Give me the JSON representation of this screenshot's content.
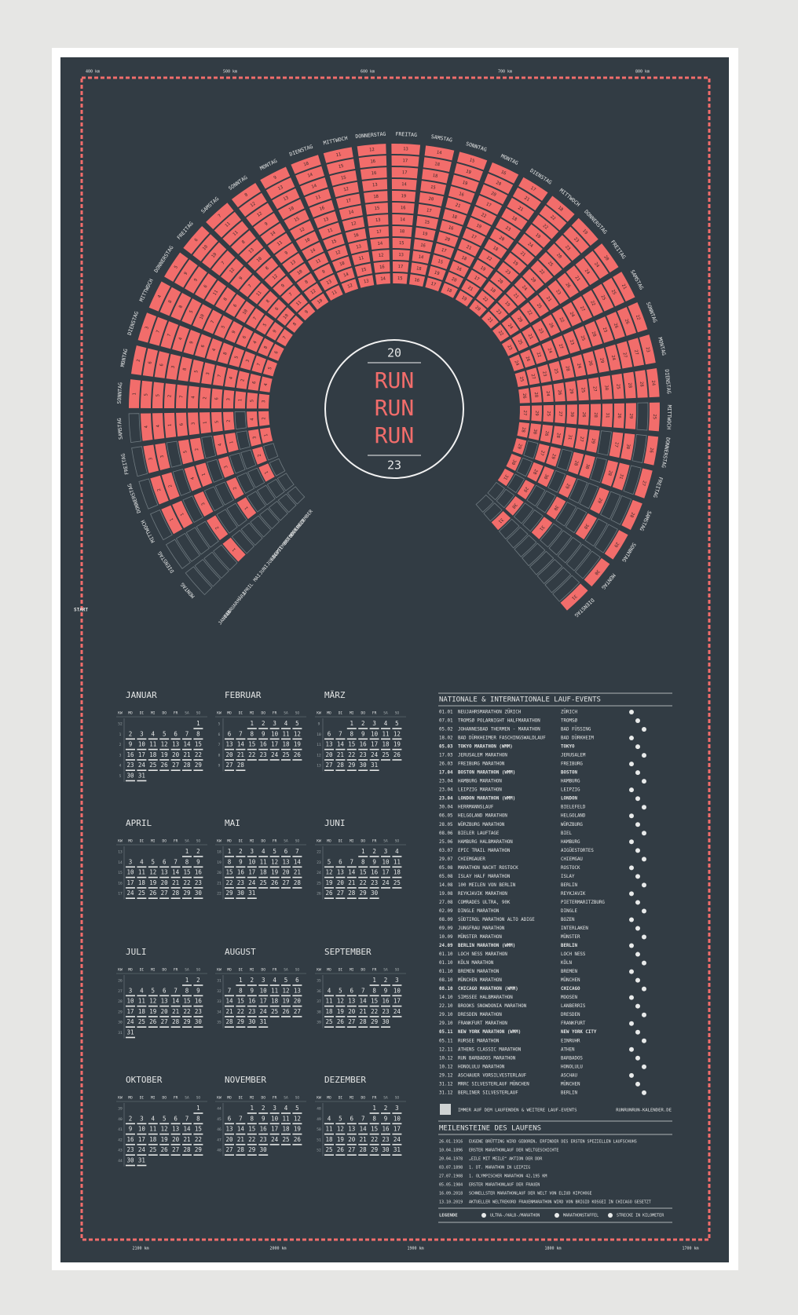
{
  "center": {
    "top": "20",
    "lines": [
      "RUN",
      "RUN",
      "RUN"
    ],
    "bottom": "23"
  },
  "start_label": "START",
  "km_top": [
    "400 km",
    "500 km",
    "600 km",
    "700 km",
    "800 km"
  ],
  "km_bottom": [
    "2100 km",
    "2000 km",
    "1900 km",
    "1800 km",
    "1700 km"
  ],
  "spiral": {
    "weekdays": [
      "MONTAG",
      "DIENSTAG",
      "MITTWOCH",
      "DONNERSTAG",
      "FREITAG",
      "SAMSTAG",
      "SONNTAG"
    ]
  },
  "calendar": {
    "kw_label": "KW",
    "weekday_headers": [
      "MO",
      "DI",
      "MI",
      "DO",
      "FR",
      "SA",
      "SO"
    ],
    "months": [
      {
        "name": "JANUAR",
        "weeks": [
          52,
          1,
          2,
          3,
          4,
          5
        ],
        "days": [
          1,
          2,
          3,
          4,
          5,
          6,
          7,
          8,
          9,
          10,
          11,
          12,
          13,
          14,
          15,
          16,
          17,
          18,
          19,
          20,
          21,
          22,
          23,
          24,
          25,
          26,
          27,
          28,
          29,
          30,
          31
        ]
      },
      {
        "name": "FEBRUAR",
        "weeks": [
          5,
          6,
          7,
          8,
          9
        ],
        "days": [
          1,
          2,
          3,
          4,
          5,
          6,
          7,
          8,
          9,
          10,
          11,
          12,
          13,
          14,
          15,
          16,
          17,
          18,
          19,
          20,
          21,
          22,
          23,
          24,
          25,
          26,
          27,
          28
        ]
      },
      {
        "name": "MÄRZ",
        "weeks": [
          9,
          10,
          11,
          12,
          13
        ],
        "days": [
          1,
          2,
          3,
          4,
          5,
          6,
          7,
          8,
          9,
          10,
          11,
          12,
          13,
          14,
          15,
          16,
          17,
          18,
          19,
          20,
          21,
          22,
          23,
          24,
          25,
          26,
          27,
          28,
          29,
          30,
          31
        ]
      },
      {
        "name": "APRIL",
        "weeks": [
          13,
          14,
          15,
          16,
          17
        ],
        "days": [
          1,
          2,
          3,
          4,
          5,
          6,
          7,
          8,
          9,
          10,
          11,
          12,
          13,
          14,
          15,
          16,
          17,
          18,
          19,
          20,
          21,
          22,
          23,
          24,
          25,
          26,
          27,
          28,
          29,
          30
        ]
      },
      {
        "name": "MAI",
        "weeks": [
          18,
          19,
          20,
          21,
          22
        ],
        "days": [
          1,
          2,
          3,
          4,
          5,
          6,
          7,
          8,
          9,
          10,
          11,
          12,
          13,
          14,
          15,
          16,
          17,
          18,
          19,
          20,
          21,
          22,
          23,
          24,
          25,
          26,
          27,
          28,
          29,
          30,
          31
        ]
      },
      {
        "name": "JUNI",
        "weeks": [
          22,
          23,
          24,
          25,
          26
        ],
        "days": [
          1,
          2,
          3,
          4,
          5,
          6,
          7,
          8,
          9,
          10,
          11,
          12,
          13,
          14,
          15,
          16,
          17,
          18,
          19,
          20,
          21,
          22,
          23,
          24,
          25,
          26,
          27,
          28,
          29,
          30
        ]
      },
      {
        "name": "JULI",
        "weeks": [
          26,
          27,
          28,
          29,
          30,
          31
        ],
        "days": [
          1,
          2,
          3,
          4,
          5,
          6,
          7,
          8,
          9,
          10,
          11,
          12,
          13,
          14,
          15,
          16,
          17,
          18,
          19,
          20,
          21,
          22,
          23,
          24,
          25,
          26,
          27,
          28,
          29,
          30,
          31
        ]
      },
      {
        "name": "AUGUST",
        "weeks": [
          31,
          32,
          33,
          34,
          35
        ],
        "days": [
          1,
          2,
          3,
          4,
          5,
          6,
          7,
          8,
          9,
          10,
          11,
          12,
          13,
          14,
          15,
          16,
          17,
          18,
          19,
          20,
          21,
          22,
          23,
          24,
          25,
          26,
          27,
          28,
          29,
          30,
          31
        ]
      },
      {
        "name": "SEPTEMBER",
        "weeks": [
          35,
          36,
          37,
          38,
          39
        ],
        "days": [
          1,
          2,
          3,
          4,
          5,
          6,
          7,
          8,
          9,
          10,
          11,
          12,
          13,
          14,
          15,
          16,
          17,
          18,
          19,
          20,
          21,
          22,
          23,
          24,
          25,
          26,
          27,
          28,
          29,
          30
        ]
      },
      {
        "name": "OKTOBER",
        "weeks": [
          39,
          40,
          41,
          42,
          43,
          44
        ],
        "days": [
          1,
          2,
          3,
          4,
          5,
          6,
          7,
          8,
          9,
          10,
          11,
          12,
          13,
          14,
          15,
          16,
          17,
          18,
          19,
          20,
          21,
          22,
          23,
          24,
          25,
          26,
          27,
          28,
          29,
          30,
          31
        ]
      },
      {
        "name": "NOVEMBER",
        "weeks": [
          44,
          45,
          46,
          47,
          48
        ],
        "days": [
          1,
          2,
          3,
          4,
          5,
          6,
          7,
          8,
          9,
          10,
          11,
          12,
          13,
          14,
          15,
          16,
          17,
          18,
          19,
          20,
          21,
          22,
          23,
          24,
          25,
          26,
          27,
          28,
          29,
          30
        ]
      },
      {
        "name": "DEZEMBER",
        "weeks": [
          48,
          49,
          50,
          51,
          52
        ],
        "days": [
          1,
          2,
          3,
          4,
          5,
          6,
          7,
          8,
          9,
          10,
          11,
          12,
          13,
          14,
          15,
          16,
          17,
          18,
          19,
          20,
          21,
          22,
          23,
          24,
          25,
          26,
          27,
          28,
          29,
          30,
          31
        ]
      }
    ]
  },
  "events": {
    "title": "NATIONALE & INTERNATIONALE LAUF-EVENTS",
    "rows": [
      [
        "01.01",
        "NEUJAHRSMARATHON ZÜRICH",
        "ZÜRICH"
      ],
      [
        "07.01",
        "TROMSØ POLARNIGHT HALFMARATHON",
        "TROMSØ"
      ],
      [
        "05.02",
        "JOHANNESBAD THERMEN - MARATHON",
        "BAD FÜSSING"
      ],
      [
        "18.02",
        "BAD DÜRKHEIMER FASCHINGSWALDLAUF",
        "BAD DÜRKHEIM"
      ],
      [
        "05.03",
        "TOKYO MARATHON (WMM)",
        "TOKYO"
      ],
      [
        "17.03",
        "JERUSALEM MARATHON",
        "JERUSALEM"
      ],
      [
        "26.03",
        "FREIBURG MARATHON",
        "FREIBURG"
      ],
      [
        "17.04",
        "BOSTON MARATHON (WMM)",
        "BOSTON"
      ],
      [
        "23.04",
        "HAMBURG MARATHON",
        "HAMBURG"
      ],
      [
        "23.04",
        "LEIPZIG MARATHON",
        "LEIPZIG"
      ],
      [
        "23.04",
        "LONDON MARATHON (WMM)",
        "LONDON"
      ],
      [
        "30.04",
        "HERRMANNSLAUF",
        "BIELEFELD"
      ],
      [
        "06.05",
        "HELGOLAND MARATHON",
        "HELGOLAND"
      ],
      [
        "28.05",
        "WÜRZBURG MARATHON",
        "WÜRZBURG"
      ],
      [
        "08.06",
        "BIELER LAUFTAGE",
        "BIEL"
      ],
      [
        "25.06",
        "HAMBURG HALBMARATHON",
        "HAMBURG"
      ],
      [
        "03.07",
        "EPIC TRAIL MARATHON",
        "AIGÜESTORTES"
      ],
      [
        "29.07",
        "CHIEMGAUER",
        "CHIEMGAU"
      ],
      [
        "05.08",
        "MARATHON NACHT ROSTOCK",
        "ROSTOCK"
      ],
      [
        "05.08",
        "ISLAY HALF MARATHON",
        "ISLAY"
      ],
      [
        "14.08",
        "100 MEILEN VON BERLIN",
        "BERLIN"
      ],
      [
        "19.08",
        "REYKJAVIK MARATHON",
        "REYKJAVIK"
      ],
      [
        "27.08",
        "COMRADES ULTRA, 90K",
        "PIETERMARITZBURG"
      ],
      [
        "02.09",
        "DINGLE MARATHON",
        "DINGLE"
      ],
      [
        "08.09",
        "SÜDTIROL MARATHON ALTO ADIGE",
        "BOZEN"
      ],
      [
        "09.09",
        "JUNGFRAU MARATHON",
        "INTERLAKEN"
      ],
      [
        "10.09",
        "MÜNSTER MARATHON",
        "MÜNSTER"
      ],
      [
        "24.09",
        "BERLIN MARATHON (WMM)",
        "BERLIN"
      ],
      [
        "01.10",
        "LOCH NESS MARATHON",
        "LOCH NESS"
      ],
      [
        "01.10",
        "KÖLN MARATHON",
        "KÖLN"
      ],
      [
        "01.10",
        "BREMEN MARATHON",
        "BREMEN"
      ],
      [
        "08.10",
        "MÜNCHEN MARATHON",
        "MÜNCHEN"
      ],
      [
        "08.10",
        "CHICAGO MARATHON (WMM)",
        "CHICAGO"
      ],
      [
        "14.10",
        "SIMSSEE HALBMARATHON",
        "MOOSEN"
      ],
      [
        "22.10",
        "BROOKS SNOWDONIA MARATHON",
        "LANBERRIS"
      ],
      [
        "29.10",
        "DRESDEN MARATHON",
        "DRESDEN"
      ],
      [
        "29.10",
        "FRANKFURT MARATHON",
        "FRANKFURT"
      ],
      [
        "05.11",
        "NEW YORK MARATHON (WMM)",
        "NEW YORK CITY"
      ],
      [
        "05.11",
        "RURSEE MARATHON",
        "EINRUHR"
      ],
      [
        "12.11",
        "ATHENS CLASSIC MARATHON",
        "ATHEN"
      ],
      [
        "10.12",
        "RUN BARBADOS MARATHON",
        "BARBADOS"
      ],
      [
        "10.12",
        "HONOLULU MARATHON",
        "HONOLULU"
      ],
      [
        "29.12",
        "ASCHAUER VORSILVESTERLAUF",
        "ASCHAU"
      ],
      [
        "31.12",
        "MRRC SILVESTERLAUF MÜNCHEN",
        "MÜNCHEN"
      ],
      [
        "31.12",
        "BERLINER SILVESTERLAUF",
        "BERLIN"
      ]
    ],
    "note": "IMMER AUF DEM LAUFENDEN & WEITERE LAUF-EVENTS",
    "url": "RUNRUNRUN-KALENDER.DE"
  },
  "milestones": {
    "title": "MEILENSTEINE DES LAUFENS",
    "rows": [
      [
        "26.01.1916",
        "EUGENE BRÜTTING WIRD GEBOREN, ERFINDER DES ERSTEN SPEZIELLEN LAUFSCHUHS"
      ],
      [
        "10.04.1896",
        "ERSTER MARATHONLAUF DER WELTGESCHICHTE"
      ],
      [
        "20.04.1978",
        "„EILE MIT MEILE“ AKTION DER DDR"
      ],
      [
        "03.07.1898",
        "1. DT. MARATHON IN LEIPZIG"
      ],
      [
        "27.07.1908",
        "1. OLYMPISCHER MARATHON 42,195 KM"
      ],
      [
        "05.05.1984",
        "ERSTER MARATHONLAUF DER FRAUEN"
      ],
      [
        "16.09.2018",
        "SCHNELLSTER MARATHONLAUF DER WELT VON ELIUD KIPCHOGE"
      ],
      [
        "13.10.2019",
        "AKTUELLER WELTREKORD FRAUENMARATHON WIRD VON BRIGID KOSGEI IN CHICAGO GESETZT"
      ]
    ]
  },
  "legend": {
    "title": "LEGENDE",
    "items": [
      "ULTRA-/HALB-/MARATHON",
      "MARATHONSTAFFEL",
      "STRECKE IN KILOMETER"
    ]
  }
}
